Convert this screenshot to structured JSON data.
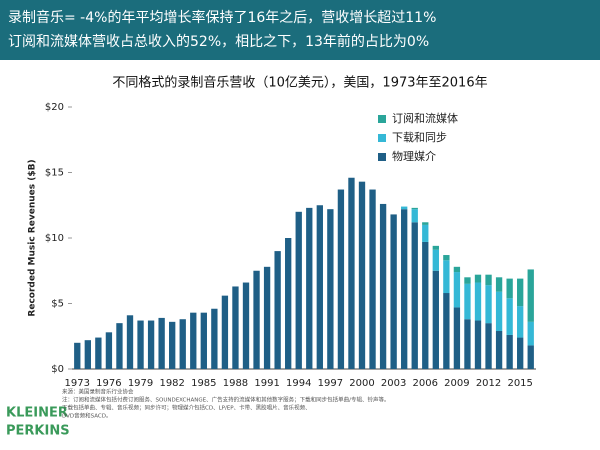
{
  "banner": [
    "录制音乐= -4%的年平均增长率保持了16年之后，营收增长超过11%",
    "订阅和流媒体营收占总收入的52%，相比之下，13年前的占比为0%"
  ],
  "chart_data": {
    "type": "stacked-bar",
    "title": "不同格式的录制音乐营收（10亿美元），美国，1973年至2016年",
    "y_label": "Recorded Music Revenues ($B)",
    "categories": [
      "1973",
      null,
      null,
      "1976",
      null,
      null,
      "1979",
      null,
      null,
      "1982",
      null,
      null,
      "1985",
      null,
      null,
      "1988",
      null,
      null,
      "1991",
      null,
      null,
      "1994",
      null,
      null,
      "1997",
      null,
      null,
      "2000",
      null,
      null,
      "2003",
      null,
      null,
      "2006",
      null,
      null,
      "2009",
      null,
      null,
      "2012",
      null,
      null,
      "2015",
      null
    ],
    "series": [
      {
        "name": "订阅和流媒体",
        "color": "#2aa59a",
        "values": [
          0,
          0,
          0,
          0,
          0,
          0,
          0,
          0,
          0,
          0,
          0,
          0,
          0,
          0,
          0,
          0,
          0,
          0,
          0,
          0,
          0,
          0,
          0,
          0,
          0,
          0,
          0,
          0,
          0,
          0,
          0,
          0.0,
          0.1,
          0.2,
          0.3,
          0.4,
          0.4,
          0.5,
          0.6,
          0.8,
          1.1,
          1.5,
          2.1,
          4.0
        ]
      },
      {
        "name": "下载和同步",
        "color": "#35b8d6",
        "values": [
          0,
          0,
          0,
          0,
          0,
          0,
          0,
          0,
          0,
          0,
          0,
          0,
          0,
          0,
          0,
          0,
          0,
          0,
          0,
          0,
          0,
          0,
          0,
          0,
          0,
          0,
          0,
          0,
          0,
          0,
          0,
          0.2,
          1.0,
          1.3,
          1.6,
          2.5,
          2.7,
          2.7,
          2.9,
          2.9,
          3.0,
          2.8,
          2.4,
          1.8
        ]
      },
      {
        "name": "物理媒介",
        "color": "#1f5f86",
        "values": [
          2.0,
          2.2,
          2.4,
          2.8,
          3.5,
          4.1,
          3.7,
          3.7,
          3.9,
          3.6,
          3.8,
          4.3,
          4.3,
          4.6,
          5.6,
          6.3,
          6.6,
          7.5,
          7.8,
          9.0,
          10.0,
          12.0,
          12.3,
          12.5,
          12.2,
          13.7,
          14.6,
          14.3,
          13.7,
          12.6,
          11.8,
          12.2,
          11.2,
          9.7,
          7.5,
          5.8,
          4.7,
          3.8,
          3.7,
          3.5,
          2.9,
          2.6,
          2.4,
          1.8
        ]
      }
    ],
    "ylim": [
      0,
      20
    ],
    "yticks": [
      {
        "value": 0,
        "label": "$0"
      },
      {
        "value": 5,
        "label": "$5"
      },
      {
        "value": 10,
        "label": "$10"
      },
      {
        "value": 15,
        "label": "$15"
      },
      {
        "value": 20,
        "label": "$20"
      }
    ],
    "grid": false
  },
  "footer": {
    "logo": [
      "KLEINER",
      "PERKINS"
    ],
    "notes": [
      "来源：美国录制音乐行业协会",
      "注：订阅和流媒体包括付费订阅服务、SOUNDEXCHANGE、广告支持的流媒体和其他数字服务；下载和同步包括单曲/专辑、铃声等。",
      "下载包括单曲、专辑、音乐视频；同步许可；物理媒介包括CD、LP/EP、卡带、黑胶唱片、音乐视频、",
      "DVD音频和SACD。"
    ]
  }
}
